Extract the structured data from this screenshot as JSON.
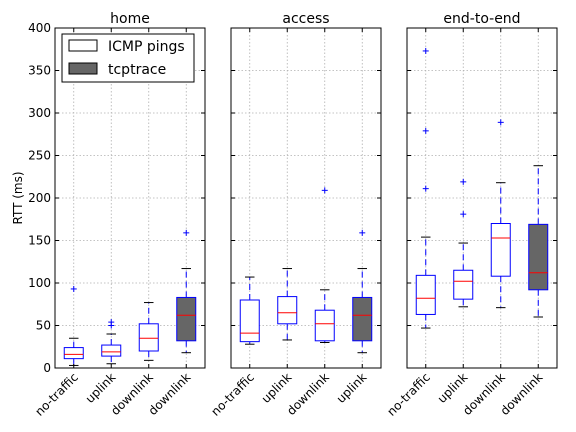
{
  "chart_data": {
    "type": "boxplot",
    "ylabel": "RTT (ms)",
    "ylim": [
      0,
      400
    ],
    "yticks": [
      0,
      50,
      100,
      150,
      200,
      250,
      300,
      350,
      400
    ],
    "grid": true,
    "legend": {
      "location": "top-left",
      "entries": [
        {
          "label": "ICMP pings",
          "fill": "#ffffff"
        },
        {
          "label": "tcptrace",
          "fill": "#666666"
        }
      ]
    },
    "colors": {
      "box_stroke": "#0000ff",
      "median": "#ff0000",
      "flier": "#0000ff",
      "whisker": "#0000ff",
      "cap": "#000000",
      "tcptrace_fill": "#666666",
      "grid": "#b0b0b0"
    },
    "panels": [
      {
        "title": "home",
        "boxes": [
          {
            "category": "no-traffic",
            "series": "ICMP pings",
            "whislo": 3,
            "q1": 11,
            "med": 16,
            "q3": 24,
            "whishi": 35,
            "fliers": [
              93
            ]
          },
          {
            "category": "uplink",
            "series": "ICMP pings",
            "whislo": 5,
            "q1": 14,
            "med": 19,
            "q3": 27,
            "whishi": 40,
            "fliers": [
              50,
              54
            ]
          },
          {
            "category": "downlink",
            "series": "ICMP pings",
            "whislo": 9,
            "q1": 20,
            "med": 35,
            "q3": 52,
            "whishi": 77,
            "fliers": []
          },
          {
            "category": "downlink",
            "series": "tcptrace",
            "whislo": 18,
            "q1": 32,
            "med": 62,
            "q3": 83,
            "whishi": 117,
            "fliers": [
              159
            ]
          }
        ]
      },
      {
        "title": "access",
        "boxes": [
          {
            "category": "no-traffic",
            "series": "ICMP pings",
            "whislo": 28,
            "q1": 31,
            "med": 41,
            "q3": 80,
            "whishi": 107,
            "fliers": []
          },
          {
            "category": "uplink",
            "series": "ICMP pings",
            "whislo": 33,
            "q1": 52,
            "med": 65,
            "q3": 84,
            "whishi": 117,
            "fliers": []
          },
          {
            "category": "downlink",
            "series": "ICMP pings",
            "whislo": 30,
            "q1": 32,
            "med": 52,
            "q3": 68,
            "whishi": 92,
            "fliers": [
              209
            ]
          },
          {
            "category": "uplink",
            "series": "tcptrace",
            "whislo": 18,
            "q1": 32,
            "med": 62,
            "q3": 83,
            "whishi": 117,
            "fliers": [
              159
            ]
          }
        ]
      },
      {
        "title": "end-to-end",
        "boxes": [
          {
            "category": "no-traffic",
            "series": "ICMP pings",
            "whislo": 47,
            "q1": 63,
            "med": 82,
            "q3": 109,
            "whishi": 154,
            "fliers": [
              211,
              279,
              373
            ]
          },
          {
            "category": "uplink",
            "series": "ICMP pings",
            "whislo": 72,
            "q1": 81,
            "med": 102,
            "q3": 115,
            "whishi": 147,
            "fliers": [
              181,
              219
            ]
          },
          {
            "category": "downlink",
            "series": "ICMP pings",
            "whislo": 71,
            "q1": 108,
            "med": 153,
            "q3": 170,
            "whishi": 218,
            "fliers": [
              289
            ]
          },
          {
            "category": "downlink",
            "series": "tcptrace",
            "whislo": 60,
            "q1": 92,
            "med": 112,
            "q3": 169,
            "whishi": 238,
            "fliers": []
          }
        ]
      }
    ]
  }
}
